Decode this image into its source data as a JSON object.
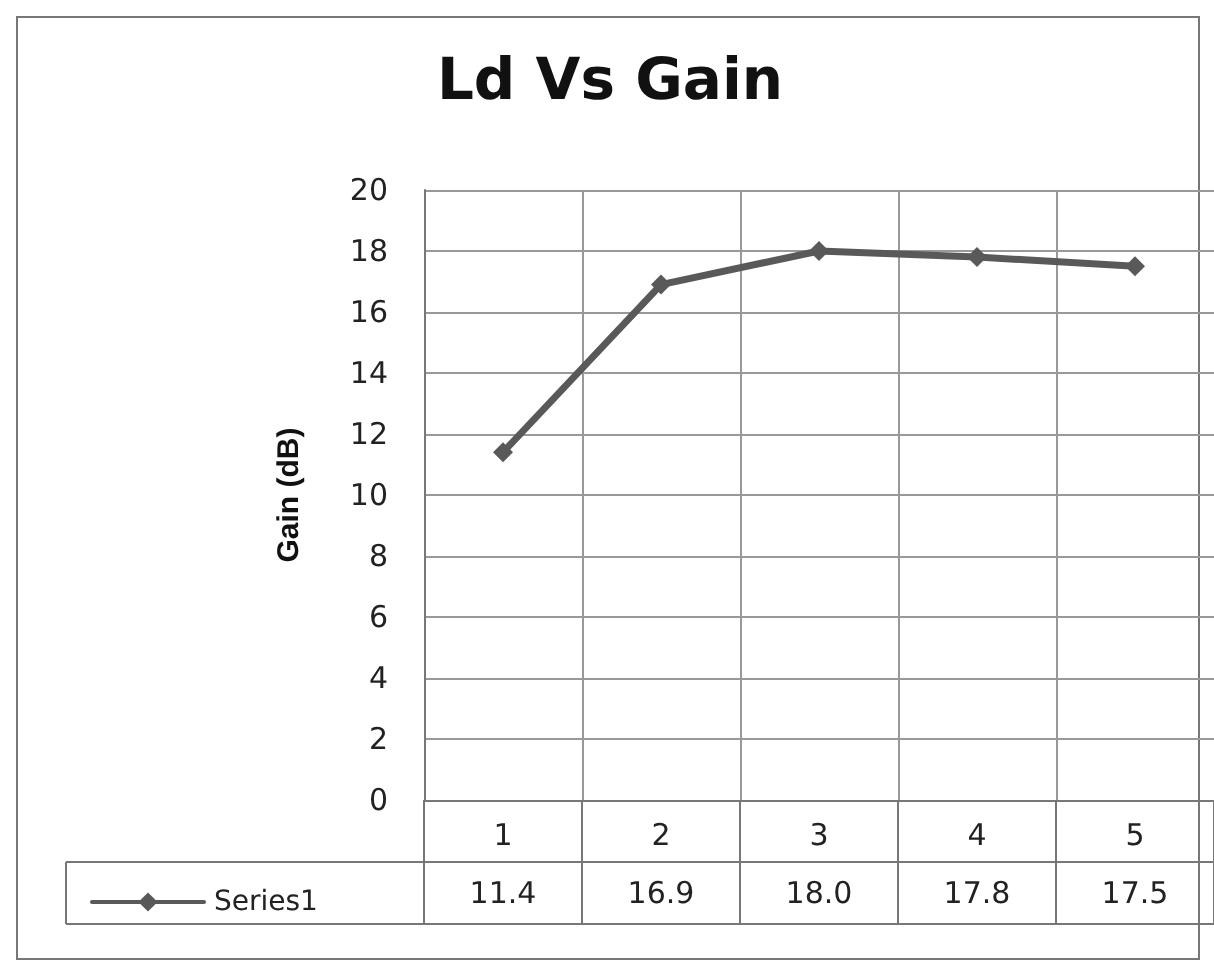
{
  "chart_data": {
    "type": "line",
    "title": "Ld Vs Gain",
    "ylabel": "Gain (dB)",
    "categories": [
      "1",
      "2",
      "3",
      "4",
      "5"
    ],
    "series": [
      {
        "name": "Series1",
        "color": "#595959",
        "values": [
          11.4,
          16.9,
          18.0,
          17.8,
          17.5
        ],
        "value_labels": [
          "11.4",
          "16.9",
          "18.0",
          "17.8",
          "17.5"
        ]
      }
    ],
    "ylim": [
      0,
      20
    ],
    "yticks": [
      0,
      2,
      4,
      6,
      8,
      10,
      12,
      14,
      16,
      18,
      20
    ],
    "grid": true,
    "legend": "bottom left",
    "marker": "diamond",
    "line_style": "solid"
  }
}
